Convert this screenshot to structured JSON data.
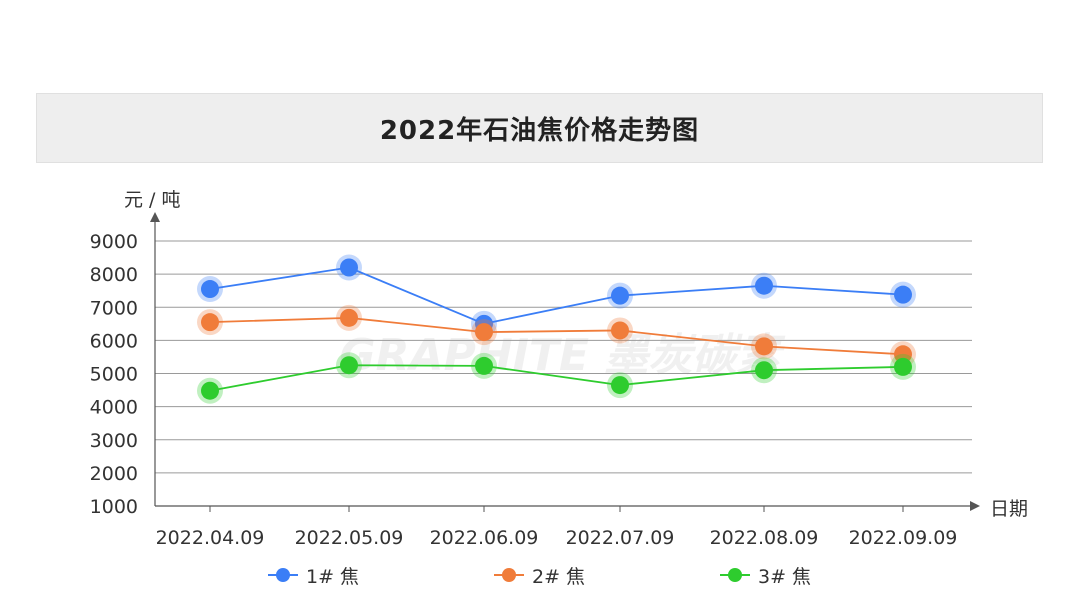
{
  "chart_data": {
    "type": "line",
    "title": "2022年石油焦价格走势图",
    "ylabel": "元 / 吨",
    "xlabel": "日期",
    "categories": [
      "2022.04.09",
      "2022.05.09",
      "2022.06.09",
      "2022.07.09",
      "2022.08.09",
      "2022.09.09"
    ],
    "ylim": [
      1000,
      9000
    ],
    "yticks": [
      "1000",
      "2000",
      "3000",
      "4000",
      "5000",
      "6000",
      "7000",
      "8000",
      "9000"
    ],
    "grid": true,
    "legend_position": "bottom",
    "series": [
      {
        "name": "1# 焦",
        "color": "#3b7ef6",
        "values": [
          7550,
          8200,
          6500,
          7350,
          7650,
          7380
        ]
      },
      {
        "name": "2# 焦",
        "color": "#f07c3a",
        "values": [
          6550,
          6680,
          6250,
          6300,
          5820,
          5580
        ]
      },
      {
        "name": "3# 焦",
        "color": "#2ecc2e",
        "values": [
          4480,
          5250,
          5230,
          4650,
          5100,
          5200
        ]
      }
    ]
  },
  "watermark": "GRAPHITE 墨炭碳素"
}
